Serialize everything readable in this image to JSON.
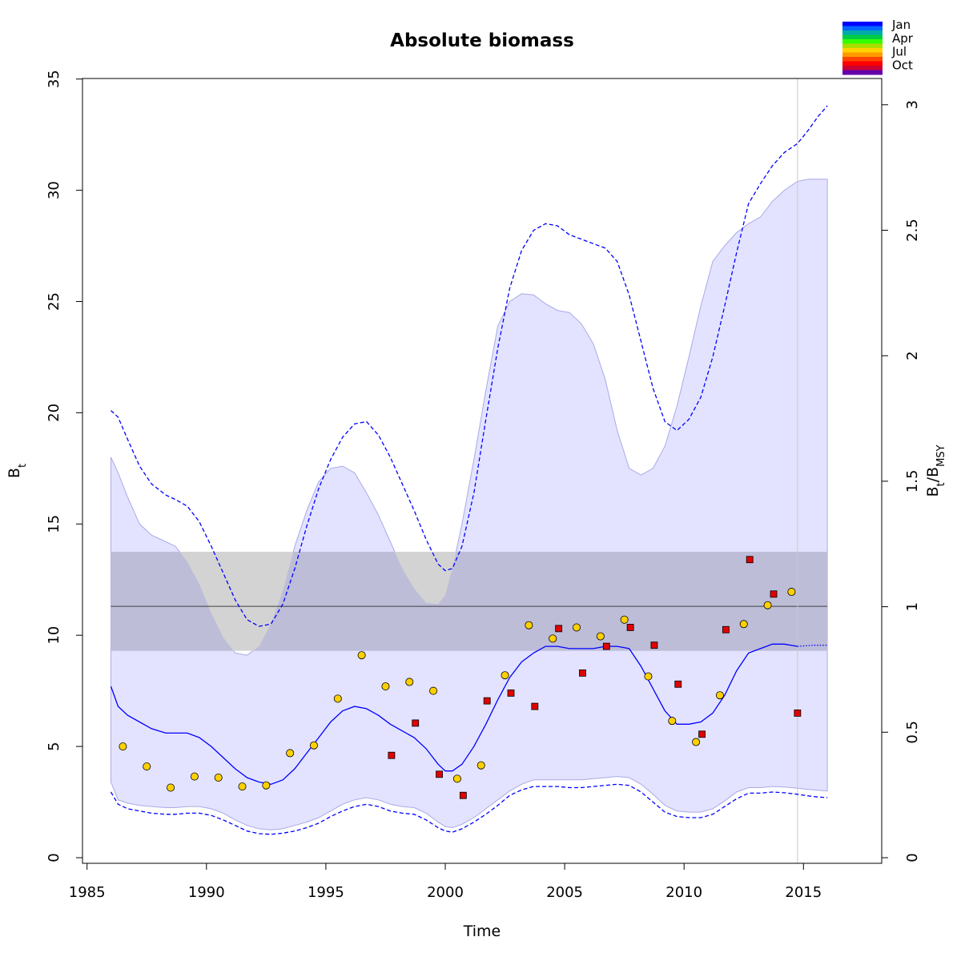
{
  "chart_data": {
    "type": "line",
    "title": "Absolute biomass",
    "xlabel": "Time",
    "ylabel": "B",
    "ylabel_sub": "t",
    "y2label": "B",
    "y2label_sub": "t",
    "y2label_sep": "/B",
    "y2label_sub2": "MSY",
    "xlim": [
      1985,
      2018
    ],
    "ylim": [
      0,
      35
    ],
    "y2lim": [
      0,
      3.1
    ],
    "x_ticks": [
      1985,
      1990,
      1995,
      2000,
      2005,
      2010,
      2015
    ],
    "x_tick_labels": [
      "1985",
      "1990",
      "1995",
      "2000",
      "2005",
      "2010",
      "2015"
    ],
    "y_ticks": [
      0,
      5,
      10,
      15,
      20,
      25,
      30,
      35
    ],
    "y_tick_labels": [
      "0",
      "5",
      "10",
      "15",
      "20",
      "25",
      "30",
      "35"
    ],
    "y2_ticks": [
      0,
      0.5,
      1,
      1.5,
      2,
      2.5,
      3
    ],
    "y2_tick_labels": [
      "0",
      "0.5",
      "1",
      "1.5",
      "2",
      "2.5",
      "3"
    ],
    "bmsy": 11.3,
    "bmsy_ci": [
      9.3,
      13.75
    ],
    "current_time": 2014.75,
    "grid": false,
    "legend": {
      "position": "top-right",
      "labels": [
        "Jan",
        "Apr",
        "Jul",
        "Oct"
      ],
      "colors": [
        "#0000FF",
        "#0066FF",
        "#00AAAA",
        "#00CC44",
        "#33FF00",
        "#AADD00",
        "#FFD200",
        "#FF9900",
        "#FF4400",
        "#FF0000",
        "#CC0033",
        "#6600AA"
      ]
    },
    "colors": {
      "estimate": "#0000FF",
      "ci_fill": "#E3E3FF",
      "bmsy_band": "#BDBDD8",
      "bmsy_band_overflow": "#D3D3D3",
      "circle_fill": "#FFD000",
      "square_fill": "#E00000"
    },
    "series": [
      {
        "key": "median",
        "x": [
          1986.0,
          1986.3,
          1986.7,
          1987.2,
          1987.7,
          1988.3,
          1988.7,
          1989.2,
          1989.7,
          1990.2,
          1990.7,
          1991.2,
          1991.7,
          1992.2,
          1992.7,
          1993.2,
          1993.7,
          1994.2,
          1994.7,
          1995.2,
          1995.7,
          1996.2,
          1996.7,
          1997.2,
          1997.7,
          1998.2,
          1998.7,
          1999.2,
          1999.7,
          2000.0,
          2000.3,
          2000.7,
          2001.2,
          2001.7,
          2002.2,
          2002.7,
          2003.2,
          2003.7,
          2004.2,
          2004.7,
          2005.2,
          2005.7,
          2006.2,
          2006.7,
          2007.2,
          2007.7,
          2008.2,
          2008.7,
          2009.2,
          2009.7,
          2010.2,
          2010.7,
          2011.2,
          2011.7,
          2012.2,
          2012.7,
          2013.2,
          2013.7,
          2014.2,
          2014.75
        ],
        "values": [
          7.7,
          6.8,
          6.4,
          6.1,
          5.8,
          5.6,
          5.6,
          5.6,
          5.4,
          5.0,
          4.5,
          4.0,
          3.6,
          3.4,
          3.3,
          3.5,
          4.0,
          4.7,
          5.4,
          6.1,
          6.6,
          6.8,
          6.7,
          6.4,
          6.0,
          5.7,
          5.4,
          4.9,
          4.2,
          3.9,
          3.9,
          4.2,
          5.0,
          6.0,
          7.1,
          8.1,
          8.8,
          9.2,
          9.5,
          9.5,
          9.4,
          9.4,
          9.4,
          9.5,
          9.5,
          9.4,
          8.6,
          7.6,
          6.6,
          6.0,
          6.0,
          6.1,
          6.5,
          7.3,
          8.4,
          9.2,
          9.4,
          9.6,
          9.6,
          9.5
        ]
      },
      {
        "key": "forecast",
        "x": [
          2014.75,
          2015.4,
          2016.0
        ],
        "values": [
          9.5,
          9.55,
          9.55
        ]
      },
      {
        "key": "ci_outer_upper",
        "x": [
          1986.0,
          1986.3,
          1986.7,
          1987.2,
          1987.7,
          1988.3,
          1988.7,
          1989.2,
          1989.7,
          1990.2,
          1990.7,
          1991.2,
          1991.7,
          1992.2,
          1992.7,
          1993.2,
          1993.7,
          1994.2,
          1994.7,
          1995.2,
          1995.7,
          1996.2,
          1996.7,
          1997.2,
          1997.7,
          1998.2,
          1998.7,
          1999.2,
          1999.7,
          2000.0,
          2000.3,
          2000.7,
          2001.2,
          2001.7,
          2002.2,
          2002.7,
          2003.2,
          2003.7,
          2004.2,
          2004.7,
          2005.2,
          2005.7,
          2006.2,
          2006.7,
          2007.2,
          2007.7,
          2008.2,
          2008.7,
          2009.2,
          2009.7,
          2010.2,
          2010.7,
          2011.2,
          2011.7,
          2012.2,
          2012.7,
          2013.2,
          2013.7,
          2014.2,
          2014.75,
          2015.2,
          2015.6,
          2016.0
        ],
        "values": [
          20.1,
          19.8,
          18.8,
          17.6,
          16.8,
          16.3,
          16.1,
          15.8,
          15.1,
          14.0,
          12.8,
          11.6,
          10.7,
          10.4,
          10.5,
          11.4,
          13.0,
          14.9,
          16.6,
          17.9,
          18.9,
          19.5,
          19.6,
          19.0,
          18.0,
          16.8,
          15.6,
          14.3,
          13.2,
          12.9,
          13.0,
          14.0,
          16.4,
          19.7,
          22.9,
          25.6,
          27.3,
          28.2,
          28.5,
          28.4,
          28.0,
          27.8,
          27.6,
          27.4,
          26.8,
          25.3,
          23.2,
          21.1,
          19.6,
          19.2,
          19.7,
          20.7,
          22.5,
          24.8,
          27.2,
          29.4,
          30.3,
          31.1,
          31.7,
          32.1,
          32.7,
          33.3,
          33.8
        ]
      },
      {
        "key": "ci_outer_lower",
        "x": [
          1986.0,
          1986.3,
          1986.7,
          1987.2,
          1987.7,
          1988.3,
          1988.7,
          1989.2,
          1989.7,
          1990.2,
          1990.7,
          1991.2,
          1991.7,
          1992.2,
          1992.7,
          1993.2,
          1993.7,
          1994.2,
          1994.7,
          1995.2,
          1995.7,
          1996.2,
          1996.7,
          1997.2,
          1997.7,
          1998.2,
          1998.7,
          1999.2,
          1999.7,
          2000.0,
          2000.3,
          2000.7,
          2001.2,
          2001.7,
          2002.2,
          2002.7,
          2003.2,
          2003.7,
          2004.2,
          2004.7,
          2005.2,
          2005.7,
          2006.2,
          2006.7,
          2007.2,
          2007.7,
          2008.2,
          2008.7,
          2009.2,
          2009.7,
          2010.2,
          2010.7,
          2011.2,
          2011.7,
          2012.2,
          2012.7,
          2013.2,
          2013.7,
          2014.2,
          2014.75,
          2015.2,
          2015.6,
          2016.0
        ],
        "values": [
          2.95,
          2.4,
          2.2,
          2.1,
          2.0,
          1.95,
          1.95,
          2.0,
          2.0,
          1.9,
          1.7,
          1.45,
          1.2,
          1.08,
          1.05,
          1.1,
          1.2,
          1.35,
          1.55,
          1.85,
          2.1,
          2.3,
          2.4,
          2.3,
          2.1,
          2.0,
          1.95,
          1.7,
          1.35,
          1.2,
          1.15,
          1.3,
          1.6,
          1.95,
          2.35,
          2.8,
          3.05,
          3.2,
          3.2,
          3.2,
          3.15,
          3.15,
          3.2,
          3.25,
          3.3,
          3.25,
          2.95,
          2.5,
          2.05,
          1.85,
          1.8,
          1.8,
          1.95,
          2.3,
          2.65,
          2.9,
          2.9,
          2.95,
          2.92,
          2.85,
          2.78,
          2.73,
          2.7
        ]
      },
      {
        "key": "ci_inner_upper",
        "x": [
          1986.0,
          1986.3,
          1986.7,
          1987.2,
          1987.7,
          1988.3,
          1988.7,
          1989.2,
          1989.7,
          1990.2,
          1990.7,
          1991.2,
          1991.7,
          1992.2,
          1992.7,
          1993.2,
          1993.7,
          1994.2,
          1994.7,
          1995.2,
          1995.7,
          1996.2,
          1996.7,
          1997.2,
          1997.7,
          1998.2,
          1998.7,
          1999.2,
          1999.7,
          2000.0,
          2000.3,
          2000.7,
          2001.2,
          2001.7,
          2002.2,
          2002.7,
          2003.2,
          2003.7,
          2004.2,
          2004.7,
          2005.2,
          2005.7,
          2006.2,
          2006.7,
          2007.2,
          2007.7,
          2008.2,
          2008.7,
          2009.2,
          2009.7,
          2010.2,
          2010.7,
          2011.2,
          2011.7,
          2012.2,
          2012.7,
          2013.2,
          2013.7,
          2014.2,
          2014.75,
          2015.2,
          2015.6,
          2016.0
        ],
        "values": [
          18.0,
          17.3,
          16.2,
          15.0,
          14.5,
          14.2,
          14.0,
          13.3,
          12.3,
          11.0,
          9.9,
          9.2,
          9.1,
          9.5,
          10.5,
          12.0,
          14.0,
          15.6,
          16.9,
          17.5,
          17.6,
          17.3,
          16.4,
          15.4,
          14.2,
          13.0,
          12.1,
          11.45,
          11.4,
          11.8,
          13.0,
          15.0,
          17.9,
          21.0,
          23.9,
          25.0,
          25.35,
          25.3,
          24.9,
          24.6,
          24.5,
          24.0,
          23.1,
          21.5,
          19.2,
          17.5,
          17.2,
          17.5,
          18.5,
          20.3,
          22.5,
          24.8,
          26.8,
          27.5,
          28.1,
          28.5,
          28.8,
          29.5,
          30.0,
          30.4,
          30.5,
          30.5,
          30.5
        ]
      },
      {
        "key": "ci_inner_lower",
        "x": [
          1986.0,
          1986.3,
          1986.7,
          1987.2,
          1987.7,
          1988.3,
          1988.7,
          1989.2,
          1989.7,
          1990.2,
          1990.7,
          1991.2,
          1991.7,
          1992.2,
          1992.7,
          1993.2,
          1993.7,
          1994.2,
          1994.7,
          1995.2,
          1995.7,
          1996.2,
          1996.7,
          1997.2,
          1997.7,
          1998.2,
          1998.7,
          1999.2,
          1999.7,
          2000.0,
          2000.3,
          2000.7,
          2001.2,
          2001.7,
          2002.2,
          2002.7,
          2003.2,
          2003.7,
          2004.2,
          2004.7,
          2005.2,
          2005.7,
          2006.2,
          2006.7,
          2007.2,
          2007.7,
          2008.2,
          2008.7,
          2009.2,
          2009.7,
          2010.2,
          2010.7,
          2011.2,
          2011.7,
          2012.2,
          2012.7,
          2013.2,
          2013.7,
          2014.2,
          2014.75,
          2015.2,
          2015.6,
          2016.0
        ],
        "values": [
          3.4,
          2.6,
          2.45,
          2.35,
          2.3,
          2.25,
          2.25,
          2.3,
          2.3,
          2.2,
          2.0,
          1.7,
          1.45,
          1.3,
          1.25,
          1.3,
          1.45,
          1.6,
          1.8,
          2.1,
          2.4,
          2.6,
          2.7,
          2.6,
          2.4,
          2.3,
          2.25,
          2.0,
          1.6,
          1.4,
          1.35,
          1.5,
          1.8,
          2.2,
          2.6,
          3.0,
          3.3,
          3.5,
          3.5,
          3.5,
          3.5,
          3.5,
          3.55,
          3.6,
          3.65,
          3.6,
          3.3,
          2.85,
          2.35,
          2.1,
          2.05,
          2.05,
          2.2,
          2.55,
          2.95,
          3.15,
          3.15,
          3.2,
          3.18,
          3.12,
          3.07,
          3.03,
          3.0
        ]
      }
    ],
    "index_circles": {
      "x": [
        1986.5,
        1987.5,
        1988.5,
        1989.5,
        1990.5,
        1991.5,
        1992.5,
        1993.5,
        1994.5,
        1995.5,
        1996.5,
        1997.5,
        1998.5,
        1999.5,
        2000.5,
        2001.5,
        2002.5,
        2003.5,
        2004.5,
        2005.5,
        2006.5,
        2007.5,
        2008.5,
        2009.5,
        2010.5,
        2011.5,
        2012.5,
        2013.5,
        2014.5
      ],
      "values": [
        5.0,
        4.1,
        3.15,
        3.65,
        3.6,
        3.2,
        3.25,
        4.7,
        5.05,
        7.15,
        9.1,
        7.7,
        7.9,
        7.5,
        3.55,
        4.15,
        8.2,
        10.45,
        9.85,
        10.35,
        9.95,
        10.7,
        8.15,
        6.15,
        5.2,
        7.3,
        10.5,
        11.35,
        11.95
      ]
    },
    "index_squares": {
      "x": [
        1997.75,
        1998.75,
        1999.75,
        2000.75,
        2001.75,
        2002.75,
        2003.75,
        2004.75,
        2005.75,
        2006.75,
        2007.75,
        2008.75,
        2009.75,
        2010.75,
        2011.75,
        2012.75,
        2013.75,
        2014.75
      ],
      "values": [
        4.6,
        6.05,
        3.75,
        2.8,
        7.05,
        7.4,
        6.8,
        10.3,
        8.3,
        9.5,
        10.35,
        9.55,
        7.8,
        5.55,
        10.25,
        13.4,
        11.85,
        6.5
      ]
    }
  }
}
